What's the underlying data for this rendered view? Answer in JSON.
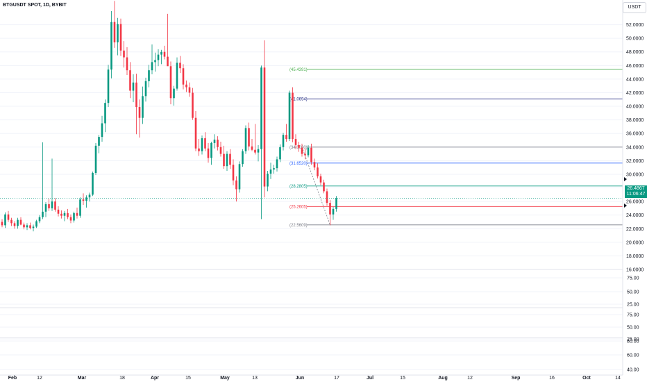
{
  "header": {
    "symbol": "BTGUSDT SPOT, 1D, BYBIT",
    "currency": "USDT"
  },
  "last_price": {
    "value": "26.4867",
    "countdown": "11:06:47"
  },
  "colors": {
    "up": "#089981",
    "down": "#f23645",
    "grid": "#f0f3fa",
    "axis_text": "#131722"
  },
  "chart_data": {
    "type": "candlestick",
    "price_axis": {
      "min": 16,
      "max": 54,
      "ticks": [
        "52.0000",
        "50.0000",
        "48.0000",
        "46.0000",
        "44.0000",
        "42.0000",
        "40.0000",
        "38.0000",
        "36.0000",
        "34.0000",
        "32.0000",
        "30.0000",
        "28.0000",
        "26.0000",
        "24.0000",
        "22.0000",
        "20.0000",
        "18.0000",
        "16.0000"
      ]
    },
    "time_axis": {
      "labels": [
        {
          "text": "Feb",
          "bold": true
        },
        {
          "text": "12",
          "bold": false
        },
        {
          "text": "Mar",
          "bold": true
        },
        {
          "text": "18",
          "bold": false
        },
        {
          "text": "Apr",
          "bold": true
        },
        {
          "text": "15",
          "bold": false
        },
        {
          "text": "May",
          "bold": true
        },
        {
          "text": "13",
          "bold": false
        },
        {
          "text": "Jun",
          "bold": true
        },
        {
          "text": "17",
          "bold": false
        },
        {
          "text": "Jul",
          "bold": true
        },
        {
          "text": "15",
          "bold": false
        },
        {
          "text": "Aug",
          "bold": true
        },
        {
          "text": "12",
          "bold": false
        },
        {
          "text": "Sep",
          "bold": true
        },
        {
          "text": "16",
          "bold": false
        },
        {
          "text": "Oct",
          "bold": true
        },
        {
          "text": "14",
          "bold": false
        }
      ]
    },
    "fib_levels": [
      {
        "label": "(45.4391)",
        "value": 45.4391,
        "color": "#4caf50"
      },
      {
        "label": "(41.0694)",
        "value": 41.0694,
        "color": "#1a237e"
      },
      {
        "label": "(34.0000)",
        "value": 34.0,
        "color": "#787b86"
      },
      {
        "label": "(31.6520)",
        "value": 31.652,
        "color": "#2962ff"
      },
      {
        "label": "(28.2805)",
        "value": 28.2805,
        "color": "#089981"
      },
      {
        "label": "(25.2605)",
        "value": 25.2605,
        "color": "#f23645"
      },
      {
        "label": "(22.5609)",
        "value": 22.5609,
        "color": "#787b86"
      }
    ],
    "candles": [
      [
        23.0,
        23.4,
        22.2,
        22.5
      ],
      [
        22.5,
        24.4,
        22.1,
        24.1
      ],
      [
        24.1,
        24.6,
        23.0,
        23.3
      ],
      [
        23.3,
        23.6,
        22.4,
        22.8
      ],
      [
        22.8,
        23.1,
        22.0,
        22.4
      ],
      [
        22.4,
        23.6,
        22.0,
        23.3
      ],
      [
        23.3,
        23.7,
        22.5,
        22.6
      ],
      [
        22.6,
        22.9,
        21.9,
        22.2
      ],
      [
        22.2,
        22.8,
        21.8,
        22.5
      ],
      [
        22.5,
        22.9,
        21.9,
        22.1
      ],
      [
        22.1,
        22.6,
        21.6,
        22.3
      ],
      [
        22.3,
        23.3,
        22.1,
        23.1
      ],
      [
        23.1,
        24.0,
        22.8,
        23.7
      ],
      [
        23.7,
        34.7,
        23.4,
        24.5
      ],
      [
        24.5,
        25.9,
        23.7,
        25.6
      ],
      [
        25.6,
        26.4,
        24.6,
        25.0
      ],
      [
        25.0,
        32.3,
        24.6,
        26.0
      ],
      [
        26.0,
        26.5,
        24.5,
        24.8
      ],
      [
        24.8,
        25.3,
        23.8,
        24.2
      ],
      [
        24.2,
        24.7,
        23.5,
        23.9
      ],
      [
        23.9,
        24.6,
        23.1,
        24.3
      ],
      [
        24.3,
        24.9,
        23.4,
        23.7
      ],
      [
        23.7,
        24.1,
        22.8,
        23.2
      ],
      [
        23.2,
        24.5,
        22.9,
        24.3
      ],
      [
        24.3,
        25.1,
        23.5,
        23.9
      ],
      [
        23.9,
        26.6,
        23.6,
        26.3
      ],
      [
        26.3,
        27.2,
        25.5,
        26.1
      ],
      [
        26.1,
        26.9,
        25.1,
        26.6
      ],
      [
        26.6,
        27.3,
        26.0,
        27.0
      ],
      [
        27.0,
        30.4,
        26.8,
        30.2
      ],
      [
        30.2,
        34.6,
        29.9,
        34.2
      ],
      [
        34.2,
        35.8,
        33.1,
        35.5
      ],
      [
        35.5,
        38.6,
        34.8,
        37.5
      ],
      [
        37.5,
        41.0,
        36.2,
        40.5
      ],
      [
        40.5,
        46.1,
        39.9,
        45.4
      ],
      [
        45.4,
        54.0,
        44.1,
        52.4
      ],
      [
        52.4,
        55.5,
        48.6,
        49.4
      ],
      [
        49.4,
        53.0,
        47.5,
        52.1
      ],
      [
        52.1,
        52.9,
        47.4,
        48.2
      ],
      [
        48.2,
        49.6,
        45.7,
        47.2
      ],
      [
        47.2,
        48.7,
        44.6,
        45.3
      ],
      [
        45.3,
        46.5,
        41.2,
        42.3
      ],
      [
        42.3,
        44.7,
        40.6,
        43.5
      ],
      [
        43.5,
        44.8,
        35.9,
        39.9
      ],
      [
        39.9,
        41.0,
        35.4,
        38.3
      ],
      [
        38.3,
        42.9,
        37.4,
        41.5
      ],
      [
        41.5,
        44.2,
        40.7,
        43.7
      ],
      [
        43.7,
        46.1,
        42.8,
        45.3
      ],
      [
        45.3,
        49.1,
        44.7,
        46.5
      ],
      [
        46.5,
        47.9,
        45.1,
        46.8
      ],
      [
        46.8,
        48.4,
        45.9,
        47.6
      ],
      [
        47.6,
        48.3,
        46.2,
        48.0
      ],
      [
        48.0,
        48.9,
        46.9,
        47.3
      ],
      [
        47.3,
        53.6,
        46.1,
        45.9
      ],
      [
        45.9,
        46.6,
        40.3,
        41.2
      ],
      [
        41.2,
        43.0,
        40.1,
        42.6
      ],
      [
        42.6,
        47.2,
        42.3,
        46.4
      ],
      [
        46.4,
        47.4,
        44.9,
        45.6
      ],
      [
        45.6,
        46.2,
        42.5,
        43.2
      ],
      [
        43.2,
        43.8,
        42.1,
        42.8
      ],
      [
        42.8,
        43.5,
        41.4,
        42.0
      ],
      [
        42.0,
        42.7,
        38.0,
        38.3
      ],
      [
        38.3,
        39.3,
        33.4,
        33.8
      ],
      [
        33.8,
        35.2,
        32.7,
        33.4
      ],
      [
        33.4,
        35.7,
        32.9,
        35.3
      ],
      [
        35.3,
        36.2,
        33.4,
        33.8
      ],
      [
        33.8,
        34.6,
        31.7,
        32.4
      ],
      [
        32.4,
        34.8,
        31.4,
        34.6
      ],
      [
        34.6,
        35.9,
        33.8,
        35.1
      ],
      [
        35.1,
        35.6,
        33.5,
        34.0
      ],
      [
        34.0,
        34.8,
        32.6,
        33.0
      ],
      [
        33.0,
        34.2,
        30.8,
        31.2
      ],
      [
        31.2,
        33.4,
        30.5,
        33.0
      ],
      [
        33.0,
        33.7,
        30.8,
        31.4
      ],
      [
        31.4,
        32.2,
        28.4,
        29.1
      ],
      [
        29.1,
        29.7,
        26.0,
        27.8
      ],
      [
        27.8,
        31.9,
        27.3,
        31.5
      ],
      [
        31.5,
        33.7,
        31.1,
        33.4
      ],
      [
        33.4,
        37.2,
        33.0,
        36.8
      ],
      [
        36.8,
        37.6,
        33.5,
        34.1
      ],
      [
        34.1,
        35.2,
        33.4,
        33.6
      ],
      [
        33.6,
        37.4,
        32.9,
        33.2
      ],
      [
        33.2,
        34.3,
        31.9,
        33.7
      ],
      [
        33.7,
        46.0,
        23.4,
        45.7
      ],
      [
        45.7,
        49.7,
        26.6,
        28.2
      ],
      [
        28.2,
        30.5,
        27.5,
        30.1
      ],
      [
        30.1,
        31.7,
        29.3,
        30.7
      ],
      [
        30.7,
        31.4,
        30.1,
        30.9
      ],
      [
        30.9,
        32.6,
        30.4,
        32.2
      ],
      [
        32.2,
        34.4,
        31.8,
        34.0
      ],
      [
        34.0,
        36.1,
        33.5,
        35.8
      ],
      [
        35.8,
        37.4,
        34.8,
        35.2
      ],
      [
        35.2,
        42.3,
        34.9,
        42.0
      ],
      [
        42.0,
        42.8,
        34.7,
        35.2
      ],
      [
        35.2,
        35.9,
        33.7,
        34.3
      ],
      [
        34.3,
        34.8,
        33.3,
        33.9
      ],
      [
        33.9,
        34.5,
        32.6,
        33.0
      ],
      [
        33.0,
        33.8,
        32.2,
        32.8
      ],
      [
        32.8,
        34.3,
        32.5,
        33.9
      ],
      [
        33.9,
        34.5,
        31.4,
        31.8
      ],
      [
        31.8,
        32.3,
        30.6,
        31.0
      ],
      [
        31.0,
        31.6,
        29.4,
        29.7
      ],
      [
        29.7,
        30.1,
        28.4,
        28.8
      ],
      [
        28.8,
        29.2,
        27.2,
        27.5
      ],
      [
        27.5,
        27.9,
        25.4,
        25.8
      ],
      [
        25.8,
        26.2,
        22.5,
        24.1
      ],
      [
        24.1,
        25.2,
        23.3,
        24.9
      ],
      [
        24.9,
        26.8,
        24.5,
        26.49
      ]
    ]
  }
}
